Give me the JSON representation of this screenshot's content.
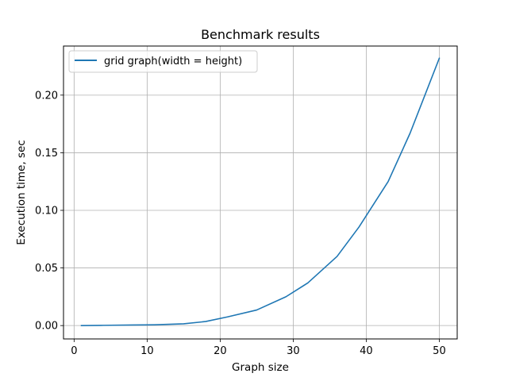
{
  "chart_data": {
    "type": "line",
    "title": "Benchmark results",
    "xlabel": "Graph size",
    "ylabel": "Execution time, sec",
    "xlim": [
      -1.45,
      52.45
    ],
    "ylim": [
      -0.0116,
      0.2426
    ],
    "xticks": [
      0,
      10,
      20,
      30,
      40,
      50
    ],
    "yticks": [
      0.0,
      0.05,
      0.1,
      0.15,
      0.2
    ],
    "ytick_labels": [
      "0.00",
      "0.05",
      "0.10",
      "0.15",
      "0.20"
    ],
    "grid": true,
    "legend_position": "upper-left",
    "series": [
      {
        "name": "grid graph(width = height)",
        "color": "#1f77b4",
        "x": [
          1,
          4,
          8,
          11,
          15,
          18,
          21,
          25,
          29,
          32,
          36,
          39,
          43,
          46,
          50
        ],
        "y": [
          0.0,
          0.0002,
          0.0005,
          0.0007,
          0.0015,
          0.0035,
          0.0075,
          0.0135,
          0.025,
          0.037,
          0.06,
          0.0855,
          0.125,
          0.167,
          0.232
        ]
      }
    ]
  }
}
